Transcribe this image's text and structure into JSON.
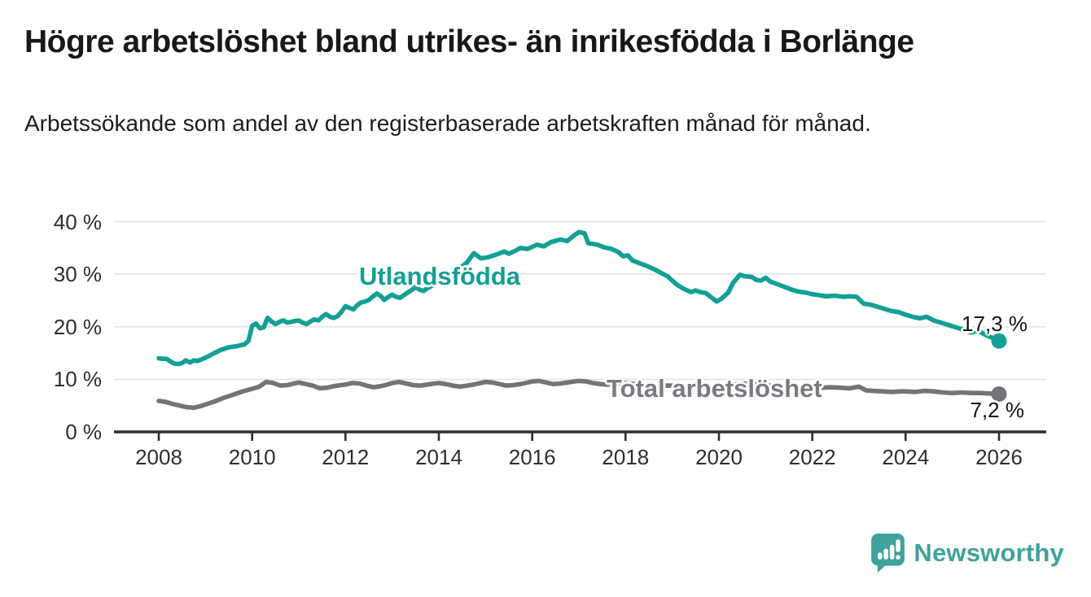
{
  "branding": {
    "name": "Newsworthy",
    "brand_color": "#3fa39c"
  },
  "chart_data": {
    "type": "line",
    "title": "Högre arbetslöshet bland utrikes- än inrikesfödda i Borlänge",
    "subtitle": "Arbetssökande som andel av den registerbaserade arbetskraften månad för månad.",
    "xlabel": "",
    "ylabel": "",
    "grid": "horizontal",
    "legend_position": "inline-labels",
    "x_range_years": [
      2007.05,
      2027.0
    ],
    "ylim": [
      0,
      40
    ],
    "y_ticks": [
      {
        "value": 0,
        "label": "0 %"
      },
      {
        "value": 10,
        "label": "10 %"
      },
      {
        "value": 20,
        "label": "20 %"
      },
      {
        "value": 30,
        "label": "30 %"
      },
      {
        "value": 40,
        "label": "40 %"
      }
    ],
    "x_ticks": [
      {
        "value": 2008,
        "label": "2008"
      },
      {
        "value": 2010,
        "label": "2010"
      },
      {
        "value": 2012,
        "label": "2012"
      },
      {
        "value": 2014,
        "label": "2014"
      },
      {
        "value": 2016,
        "label": "2016"
      },
      {
        "value": 2018,
        "label": "2018"
      },
      {
        "value": 2020,
        "label": "2020"
      },
      {
        "value": 2022,
        "label": "2022"
      },
      {
        "value": 2024,
        "label": "2024"
      },
      {
        "value": 2026,
        "label": "2026"
      }
    ],
    "series": [
      {
        "name": "Utlandsfödda",
        "color": "#12a095",
        "end_label": "17,3 %",
        "end_value": 17.3,
        "points": [
          [
            2008.0,
            14.0
          ],
          [
            2008.08,
            13.9
          ],
          [
            2008.17,
            13.9
          ],
          [
            2008.25,
            13.4
          ],
          [
            2008.33,
            13.0
          ],
          [
            2008.42,
            12.9
          ],
          [
            2008.5,
            13.1
          ],
          [
            2008.58,
            13.6
          ],
          [
            2008.67,
            13.2
          ],
          [
            2008.75,
            13.6
          ],
          [
            2008.83,
            13.5
          ],
          [
            2008.92,
            13.8
          ],
          [
            2009.0,
            14.1
          ],
          [
            2009.17,
            14.9
          ],
          [
            2009.33,
            15.6
          ],
          [
            2009.5,
            16.1
          ],
          [
            2009.58,
            16.2
          ],
          [
            2009.67,
            16.3
          ],
          [
            2009.75,
            16.5
          ],
          [
            2009.83,
            16.6
          ],
          [
            2009.92,
            17.3
          ],
          [
            2010.0,
            20.2
          ],
          [
            2010.08,
            20.6
          ],
          [
            2010.17,
            19.7
          ],
          [
            2010.25,
            19.9
          ],
          [
            2010.33,
            21.7
          ],
          [
            2010.42,
            21.0
          ],
          [
            2010.5,
            20.5
          ],
          [
            2010.58,
            20.9
          ],
          [
            2010.67,
            21.2
          ],
          [
            2010.75,
            20.8
          ],
          [
            2010.83,
            20.9
          ],
          [
            2010.92,
            21.1
          ],
          [
            2011.0,
            21.2
          ],
          [
            2011.08,
            20.8
          ],
          [
            2011.17,
            20.5
          ],
          [
            2011.25,
            21.0
          ],
          [
            2011.33,
            21.4
          ],
          [
            2011.42,
            21.2
          ],
          [
            2011.5,
            21.9
          ],
          [
            2011.58,
            22.4
          ],
          [
            2011.67,
            21.9
          ],
          [
            2011.75,
            21.7
          ],
          [
            2011.83,
            22.0
          ],
          [
            2011.92,
            22.9
          ],
          [
            2012.0,
            23.9
          ],
          [
            2012.08,
            23.6
          ],
          [
            2012.17,
            23.3
          ],
          [
            2012.25,
            24.1
          ],
          [
            2012.33,
            24.6
          ],
          [
            2012.42,
            24.8
          ],
          [
            2012.5,
            25.1
          ],
          [
            2012.58,
            25.7
          ],
          [
            2012.67,
            26.3
          ],
          [
            2012.75,
            25.9
          ],
          [
            2012.83,
            25.1
          ],
          [
            2012.92,
            25.7
          ],
          [
            2013.0,
            26.1
          ],
          [
            2013.08,
            25.7
          ],
          [
            2013.17,
            25.5
          ],
          [
            2013.25,
            26.0
          ],
          [
            2013.33,
            26.5
          ],
          [
            2013.42,
            27.0
          ],
          [
            2013.5,
            27.6
          ],
          [
            2013.58,
            27.1
          ],
          [
            2013.67,
            26.8
          ],
          [
            2013.75,
            27.3
          ],
          [
            2013.83,
            27.7
          ],
          [
            2013.92,
            28.1
          ],
          [
            2014.0,
            28.8
          ],
          [
            2014.17,
            29.7
          ],
          [
            2014.33,
            30.6
          ],
          [
            2014.5,
            31.5
          ],
          [
            2014.6,
            32.2
          ],
          [
            2014.75,
            34.0
          ],
          [
            2014.9,
            33.0
          ],
          [
            2015.05,
            33.2
          ],
          [
            2015.25,
            33.8
          ],
          [
            2015.4,
            34.3
          ],
          [
            2015.5,
            33.9
          ],
          [
            2015.65,
            34.5
          ],
          [
            2015.75,
            35.0
          ],
          [
            2015.9,
            34.8
          ],
          [
            2016.1,
            35.6
          ],
          [
            2016.25,
            35.3
          ],
          [
            2016.4,
            36.1
          ],
          [
            2016.6,
            36.6
          ],
          [
            2016.75,
            36.3
          ],
          [
            2016.9,
            37.4
          ],
          [
            2017.0,
            38.0
          ],
          [
            2017.12,
            37.8
          ],
          [
            2017.2,
            35.9
          ],
          [
            2017.4,
            35.6
          ],
          [
            2017.55,
            35.1
          ],
          [
            2017.7,
            34.8
          ],
          [
            2017.85,
            34.2
          ],
          [
            2017.95,
            33.4
          ],
          [
            2018.05,
            33.6
          ],
          [
            2018.15,
            32.6
          ],
          [
            2018.3,
            32.1
          ],
          [
            2018.45,
            31.6
          ],
          [
            2018.6,
            31.0
          ],
          [
            2018.75,
            30.3
          ],
          [
            2018.9,
            29.6
          ],
          [
            2019.0,
            28.8
          ],
          [
            2019.1,
            28.0
          ],
          [
            2019.25,
            27.2
          ],
          [
            2019.4,
            26.6
          ],
          [
            2019.5,
            26.9
          ],
          [
            2019.6,
            26.6
          ],
          [
            2019.72,
            26.4
          ],
          [
            2019.85,
            25.5
          ],
          [
            2019.95,
            24.8
          ],
          [
            2020.05,
            25.3
          ],
          [
            2020.2,
            26.5
          ],
          [
            2020.3,
            28.3
          ],
          [
            2020.45,
            29.9
          ],
          [
            2020.55,
            29.6
          ],
          [
            2020.7,
            29.5
          ],
          [
            2020.8,
            28.9
          ],
          [
            2020.9,
            28.8
          ],
          [
            2021.0,
            29.3
          ],
          [
            2021.1,
            28.6
          ],
          [
            2021.25,
            28.1
          ],
          [
            2021.4,
            27.6
          ],
          [
            2021.55,
            27.1
          ],
          [
            2021.7,
            26.7
          ],
          [
            2021.85,
            26.5
          ],
          [
            2022.0,
            26.2
          ],
          [
            2022.15,
            26.0
          ],
          [
            2022.3,
            25.8
          ],
          [
            2022.5,
            25.9
          ],
          [
            2022.65,
            25.7
          ],
          [
            2022.8,
            25.8
          ],
          [
            2022.95,
            25.7
          ],
          [
            2023.1,
            24.4
          ],
          [
            2023.25,
            24.2
          ],
          [
            2023.4,
            23.8
          ],
          [
            2023.55,
            23.4
          ],
          [
            2023.7,
            23.0
          ],
          [
            2023.85,
            22.8
          ],
          [
            2024.0,
            22.3
          ],
          [
            2024.15,
            21.9
          ],
          [
            2024.3,
            21.6
          ],
          [
            2024.45,
            21.9
          ],
          [
            2024.6,
            21.2
          ],
          [
            2024.75,
            20.8
          ],
          [
            2024.9,
            20.4
          ],
          [
            2025.0,
            20.1
          ],
          [
            2025.15,
            19.7
          ],
          [
            2025.3,
            19.2
          ],
          [
            2025.4,
            18.9
          ],
          [
            2025.55,
            19.3
          ],
          [
            2025.7,
            18.5
          ],
          [
            2025.85,
            17.9
          ],
          [
            2026.0,
            17.3
          ]
        ]
      },
      {
        "name": "Total arbetslöshet",
        "color": "#747379",
        "end_label": "7,2 %",
        "end_value": 7.2,
        "points": [
          [
            2008.0,
            5.9
          ],
          [
            2008.15,
            5.7
          ],
          [
            2008.3,
            5.3
          ],
          [
            2008.45,
            5.0
          ],
          [
            2008.6,
            4.7
          ],
          [
            2008.75,
            4.6
          ],
          [
            2008.9,
            4.9
          ],
          [
            2009.0,
            5.2
          ],
          [
            2009.2,
            5.8
          ],
          [
            2009.4,
            6.5
          ],
          [
            2009.6,
            7.1
          ],
          [
            2009.8,
            7.7
          ],
          [
            2010.0,
            8.2
          ],
          [
            2010.15,
            8.6
          ],
          [
            2010.3,
            9.5
          ],
          [
            2010.45,
            9.3
          ],
          [
            2010.6,
            8.8
          ],
          [
            2010.75,
            8.9
          ],
          [
            2010.9,
            9.2
          ],
          [
            2011.0,
            9.4
          ],
          [
            2011.15,
            9.1
          ],
          [
            2011.3,
            8.8
          ],
          [
            2011.45,
            8.3
          ],
          [
            2011.6,
            8.4
          ],
          [
            2011.75,
            8.7
          ],
          [
            2011.9,
            8.9
          ],
          [
            2012.0,
            9.0
          ],
          [
            2012.15,
            9.3
          ],
          [
            2012.3,
            9.2
          ],
          [
            2012.45,
            8.8
          ],
          [
            2012.6,
            8.5
          ],
          [
            2012.75,
            8.7
          ],
          [
            2012.9,
            9.0
          ],
          [
            2013.0,
            9.3
          ],
          [
            2013.15,
            9.5
          ],
          [
            2013.3,
            9.2
          ],
          [
            2013.45,
            8.9
          ],
          [
            2013.6,
            8.8
          ],
          [
            2013.75,
            9.0
          ],
          [
            2013.9,
            9.2
          ],
          [
            2014.0,
            9.3
          ],
          [
            2014.15,
            9.1
          ],
          [
            2014.3,
            8.8
          ],
          [
            2014.45,
            8.6
          ],
          [
            2014.6,
            8.8
          ],
          [
            2014.75,
            9.0
          ],
          [
            2014.9,
            9.3
          ],
          [
            2015.0,
            9.5
          ],
          [
            2015.15,
            9.4
          ],
          [
            2015.3,
            9.1
          ],
          [
            2015.45,
            8.8
          ],
          [
            2015.6,
            8.9
          ],
          [
            2015.75,
            9.1
          ],
          [
            2015.9,
            9.4
          ],
          [
            2016.0,
            9.6
          ],
          [
            2016.15,
            9.7
          ],
          [
            2016.3,
            9.4
          ],
          [
            2016.45,
            9.1
          ],
          [
            2016.6,
            9.2
          ],
          [
            2016.75,
            9.4
          ],
          [
            2016.9,
            9.6
          ],
          [
            2017.0,
            9.7
          ],
          [
            2017.15,
            9.6
          ],
          [
            2017.3,
            9.3
          ],
          [
            2017.45,
            9.1
          ],
          [
            2017.6,
            9.0
          ],
          [
            2017.75,
            9.1
          ],
          [
            2017.9,
            9.3
          ],
          [
            2018.0,
            9.3
          ],
          [
            2018.2,
            9.1
          ],
          [
            2018.4,
            8.9
          ],
          [
            2018.6,
            8.7
          ],
          [
            2018.8,
            8.8
          ],
          [
            2019.0,
            8.8
          ],
          [
            2019.2,
            8.7
          ],
          [
            2019.4,
            8.6
          ],
          [
            2019.6,
            8.5
          ],
          [
            2019.8,
            8.4
          ],
          [
            2020.0,
            8.3
          ],
          [
            2020.2,
            8.7
          ],
          [
            2020.4,
            9.1
          ],
          [
            2020.55,
            9.2
          ],
          [
            2020.7,
            9.1
          ],
          [
            2020.85,
            9.0
          ],
          [
            2021.0,
            8.9
          ],
          [
            2021.2,
            8.7
          ],
          [
            2021.4,
            8.5
          ],
          [
            2021.6,
            8.4
          ],
          [
            2021.8,
            8.3
          ],
          [
            2022.0,
            8.2
          ],
          [
            2022.2,
            8.4
          ],
          [
            2022.4,
            8.5
          ],
          [
            2022.6,
            8.4
          ],
          [
            2022.8,
            8.3
          ],
          [
            2023.0,
            8.6
          ],
          [
            2023.15,
            7.9
          ],
          [
            2023.3,
            7.8
          ],
          [
            2023.5,
            7.7
          ],
          [
            2023.7,
            7.6
          ],
          [
            2023.9,
            7.7
          ],
          [
            2024.0,
            7.7
          ],
          [
            2024.2,
            7.6
          ],
          [
            2024.4,
            7.8
          ],
          [
            2024.6,
            7.7
          ],
          [
            2024.8,
            7.5
          ],
          [
            2025.0,
            7.4
          ],
          [
            2025.2,
            7.5
          ],
          [
            2025.4,
            7.4
          ],
          [
            2025.6,
            7.4
          ],
          [
            2025.8,
            7.3
          ],
          [
            2026.0,
            7.2
          ]
        ]
      }
    ],
    "style_colors": {
      "grid": "#e4e4e4",
      "axis": "#2d2d2d",
      "tick_text": "#2e2e2e",
      "title_text": "#181818"
    }
  }
}
